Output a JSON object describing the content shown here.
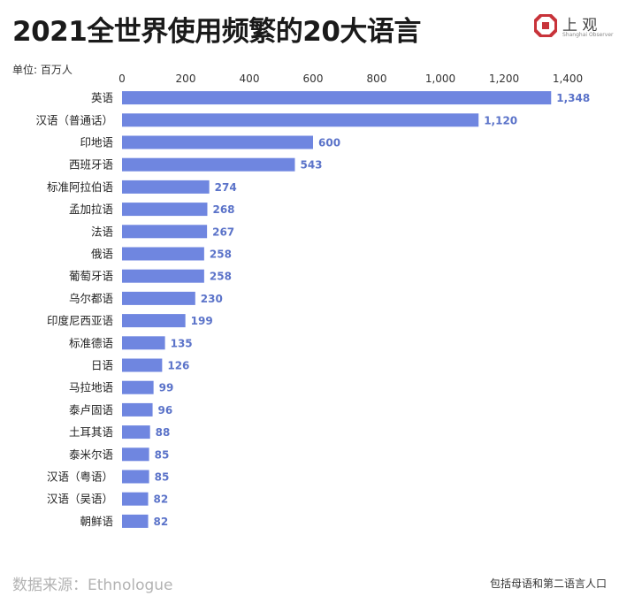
{
  "header": {
    "title": "2021全世界使用频繁的20大语言",
    "logo_name": "上 观",
    "logo_en": "Shanghai Observer"
  },
  "unit_label": "单位: 百万人",
  "footer": {
    "source": "数据来源：Ethnologue",
    "note": "包括母语和第二语言人口"
  },
  "colors": {
    "bar": "#6f86e0",
    "value_label": "#5b73c9",
    "logo": "#c8333a"
  },
  "chart_data": {
    "type": "bar",
    "orientation": "horizontal",
    "title": "2021全世界使用频繁的20大语言",
    "xlabel": "单位: 百万人",
    "xlim": [
      0,
      1400
    ],
    "ticks": [
      0,
      200,
      400,
      600,
      800,
      1000,
      1200,
      1400
    ],
    "tick_labels": [
      "0",
      "200",
      "400",
      "600",
      "800",
      "1,000",
      "1,200",
      "1,400"
    ],
    "grid": false,
    "categories": [
      "英语",
      "汉语（普通话）",
      "印地语",
      "西班牙语",
      "标准阿拉伯语",
      "孟加拉语",
      "法语",
      "俄语",
      "葡萄牙语",
      "乌尔都语",
      "印度尼西亚语",
      "标准德语",
      "日语",
      "马拉地语",
      "泰卢固语",
      "土耳其语",
      "泰米尔语",
      "汉语（粤语）",
      "汉语（吴语）",
      "朝鲜语"
    ],
    "values": [
      1348,
      1120,
      600,
      543,
      274,
      268,
      267,
      258,
      258,
      230,
      199,
      135,
      126,
      99,
      96,
      88,
      85,
      85,
      82,
      82
    ],
    "value_labels": [
      "1,348",
      "1,120",
      "600",
      "543",
      "274",
      "268",
      "267",
      "258",
      "258",
      "230",
      "199",
      "135",
      "126",
      "99",
      "96",
      "88",
      "85",
      "85",
      "82",
      "82"
    ]
  }
}
